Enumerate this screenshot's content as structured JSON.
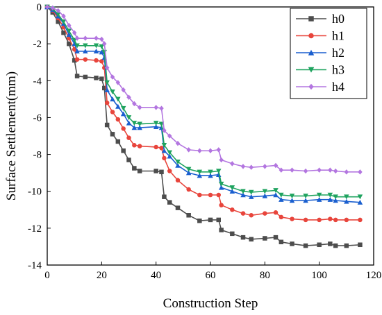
{
  "chart_data": {
    "type": "line",
    "title": "",
    "xlabel": "Construction Step",
    "ylabel": "Surface Settlement(mm)",
    "xlim": [
      0,
      120
    ],
    "ylim": [
      -14,
      0
    ],
    "xticks": [
      0,
      20,
      40,
      60,
      80,
      100,
      120
    ],
    "yticks": [
      0,
      -2,
      -4,
      -6,
      -8,
      -10,
      -12,
      -14
    ],
    "grid": false,
    "legend_position": "top-right",
    "series": [
      {
        "name": "h0",
        "color": "#4d4d4d",
        "marker": "square",
        "points": [
          [
            0,
            0
          ],
          [
            2,
            -0.3
          ],
          [
            4,
            -0.8
          ],
          [
            6,
            -1.4
          ],
          [
            8,
            -2.0
          ],
          [
            10,
            -2.9
          ],
          [
            11,
            -3.75
          ],
          [
            14,
            -3.8
          ],
          [
            18,
            -3.85
          ],
          [
            20,
            -3.9
          ],
          [
            21,
            -4.4
          ],
          [
            22,
            -6.4
          ],
          [
            24,
            -6.9
          ],
          [
            26,
            -7.3
          ],
          [
            28,
            -7.8
          ],
          [
            30,
            -8.3
          ],
          [
            32,
            -8.75
          ],
          [
            34,
            -8.9
          ],
          [
            40,
            -8.9
          ],
          [
            42,
            -8.95
          ],
          [
            43,
            -10.3
          ],
          [
            45,
            -10.6
          ],
          [
            48,
            -10.9
          ],
          [
            52,
            -11.3
          ],
          [
            56,
            -11.6
          ],
          [
            60,
            -11.55
          ],
          [
            63,
            -11.55
          ],
          [
            64,
            -12.1
          ],
          [
            68,
            -12.3
          ],
          [
            72,
            -12.5
          ],
          [
            75,
            -12.6
          ],
          [
            80,
            -12.55
          ],
          [
            84,
            -12.5
          ],
          [
            86,
            -12.75
          ],
          [
            90,
            -12.85
          ],
          [
            95,
            -12.95
          ],
          [
            100,
            -12.9
          ],
          [
            104,
            -12.85
          ],
          [
            106,
            -12.95
          ],
          [
            110,
            -12.95
          ],
          [
            115,
            -12.9
          ]
        ]
      },
      {
        "name": "h1",
        "color": "#e8453c",
        "marker": "circle",
        "points": [
          [
            0,
            0
          ],
          [
            2,
            -0.2
          ],
          [
            4,
            -0.6
          ],
          [
            6,
            -1.1
          ],
          [
            8,
            -1.7
          ],
          [
            10,
            -2.3
          ],
          [
            11,
            -2.85
          ],
          [
            14,
            -2.85
          ],
          [
            18,
            -2.9
          ],
          [
            20,
            -2.95
          ],
          [
            21,
            -3.3
          ],
          [
            22,
            -5.2
          ],
          [
            24,
            -5.7
          ],
          [
            26,
            -6.1
          ],
          [
            28,
            -6.6
          ],
          [
            30,
            -7.1
          ],
          [
            32,
            -7.5
          ],
          [
            34,
            -7.55
          ],
          [
            40,
            -7.6
          ],
          [
            42,
            -7.65
          ],
          [
            43,
            -8.2
          ],
          [
            45,
            -8.9
          ],
          [
            48,
            -9.4
          ],
          [
            52,
            -9.9
          ],
          [
            56,
            -10.2
          ],
          [
            60,
            -10.2
          ],
          [
            63,
            -10.2
          ],
          [
            64,
            -10.75
          ],
          [
            68,
            -11.0
          ],
          [
            72,
            -11.2
          ],
          [
            75,
            -11.3
          ],
          [
            80,
            -11.2
          ],
          [
            84,
            -11.15
          ],
          [
            86,
            -11.4
          ],
          [
            90,
            -11.5
          ],
          [
            95,
            -11.55
          ],
          [
            100,
            -11.55
          ],
          [
            104,
            -11.5
          ],
          [
            106,
            -11.55
          ],
          [
            110,
            -11.55
          ],
          [
            115,
            -11.55
          ]
        ]
      },
      {
        "name": "h2",
        "color": "#1a5fcf",
        "marker": "triangle-up",
        "points": [
          [
            0,
            0
          ],
          [
            2,
            -0.15
          ],
          [
            4,
            -0.5
          ],
          [
            6,
            -0.9
          ],
          [
            8,
            -1.5
          ],
          [
            10,
            -2.0
          ],
          [
            11,
            -2.4
          ],
          [
            14,
            -2.4
          ],
          [
            18,
            -2.4
          ],
          [
            20,
            -2.45
          ],
          [
            21,
            -2.75
          ],
          [
            22,
            -4.5
          ],
          [
            24,
            -5.0
          ],
          [
            26,
            -5.4
          ],
          [
            28,
            -5.8
          ],
          [
            30,
            -6.3
          ],
          [
            32,
            -6.55
          ],
          [
            34,
            -6.55
          ],
          [
            40,
            -6.5
          ],
          [
            42,
            -6.55
          ],
          [
            43,
            -7.8
          ],
          [
            45,
            -8.1
          ],
          [
            48,
            -8.6
          ],
          [
            52,
            -9.0
          ],
          [
            56,
            -9.15
          ],
          [
            60,
            -9.15
          ],
          [
            63,
            -9.1
          ],
          [
            64,
            -9.8
          ],
          [
            68,
            -10.0
          ],
          [
            72,
            -10.2
          ],
          [
            75,
            -10.3
          ],
          [
            80,
            -10.25
          ],
          [
            84,
            -10.2
          ],
          [
            86,
            -10.45
          ],
          [
            90,
            -10.5
          ],
          [
            95,
            -10.5
          ],
          [
            100,
            -10.45
          ],
          [
            104,
            -10.45
          ],
          [
            106,
            -10.5
          ],
          [
            110,
            -10.55
          ],
          [
            115,
            -10.6
          ]
        ]
      },
      {
        "name": "h3",
        "color": "#1fa35f",
        "marker": "triangle-down",
        "points": [
          [
            0,
            0
          ],
          [
            2,
            -0.1
          ],
          [
            4,
            -0.4
          ],
          [
            6,
            -0.8
          ],
          [
            8,
            -1.3
          ],
          [
            10,
            -1.8
          ],
          [
            11,
            -2.1
          ],
          [
            14,
            -2.1
          ],
          [
            18,
            -2.1
          ],
          [
            20,
            -2.15
          ],
          [
            21,
            -2.45
          ],
          [
            22,
            -4.1
          ],
          [
            24,
            -4.6
          ],
          [
            26,
            -5.0
          ],
          [
            28,
            -5.5
          ],
          [
            30,
            -6.0
          ],
          [
            32,
            -6.3
          ],
          [
            34,
            -6.35
          ],
          [
            40,
            -6.3
          ],
          [
            42,
            -6.35
          ],
          [
            43,
            -7.5
          ],
          [
            45,
            -7.9
          ],
          [
            48,
            -8.4
          ],
          [
            52,
            -8.8
          ],
          [
            56,
            -8.95
          ],
          [
            60,
            -8.95
          ],
          [
            63,
            -8.9
          ],
          [
            64,
            -9.6
          ],
          [
            68,
            -9.8
          ],
          [
            72,
            -10.0
          ],
          [
            75,
            -10.05
          ],
          [
            80,
            -10.0
          ],
          [
            84,
            -9.95
          ],
          [
            86,
            -10.2
          ],
          [
            90,
            -10.25
          ],
          [
            95,
            -10.25
          ],
          [
            100,
            -10.2
          ],
          [
            104,
            -10.2
          ],
          [
            106,
            -10.3
          ],
          [
            110,
            -10.3
          ],
          [
            115,
            -10.3
          ]
        ]
      },
      {
        "name": "h4",
        "color": "#b376e0",
        "marker": "diamond",
        "points": [
          [
            0,
            0
          ],
          [
            2,
            -0.05
          ],
          [
            4,
            -0.2
          ],
          [
            6,
            -0.5
          ],
          [
            8,
            -1.0
          ],
          [
            10,
            -1.4
          ],
          [
            11,
            -1.7
          ],
          [
            14,
            -1.7
          ],
          [
            18,
            -1.7
          ],
          [
            20,
            -1.75
          ],
          [
            21,
            -2.0
          ],
          [
            22,
            -3.3
          ],
          [
            24,
            -3.8
          ],
          [
            26,
            -4.1
          ],
          [
            28,
            -4.5
          ],
          [
            30,
            -4.9
          ],
          [
            32,
            -5.25
          ],
          [
            34,
            -5.45
          ],
          [
            40,
            -5.45
          ],
          [
            42,
            -5.5
          ],
          [
            43,
            -6.7
          ],
          [
            45,
            -7.0
          ],
          [
            48,
            -7.4
          ],
          [
            52,
            -7.75
          ],
          [
            56,
            -7.8
          ],
          [
            60,
            -7.8
          ],
          [
            63,
            -7.75
          ],
          [
            64,
            -8.3
          ],
          [
            68,
            -8.5
          ],
          [
            72,
            -8.65
          ],
          [
            75,
            -8.7
          ],
          [
            80,
            -8.65
          ],
          [
            84,
            -8.6
          ],
          [
            86,
            -8.85
          ],
          [
            90,
            -8.85
          ],
          [
            95,
            -8.9
          ],
          [
            100,
            -8.85
          ],
          [
            104,
            -8.85
          ],
          [
            106,
            -8.9
          ],
          [
            110,
            -8.95
          ],
          [
            115,
            -8.95
          ]
        ]
      }
    ]
  }
}
